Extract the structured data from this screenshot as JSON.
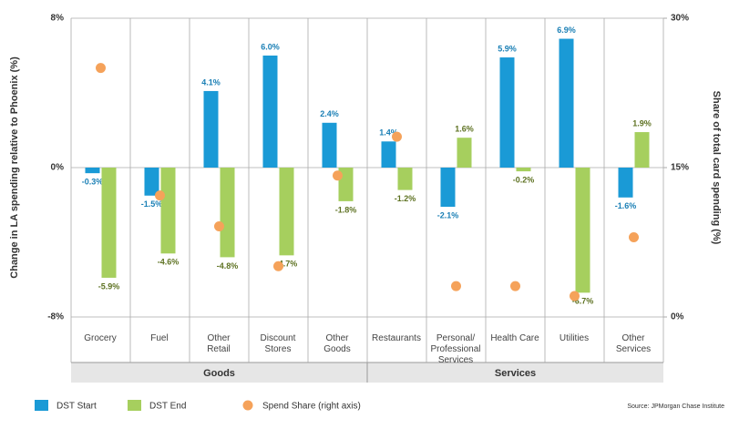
{
  "chart_data": {
    "type": "bar",
    "y_label": "Change in LA spending relative to Phoenix (%)",
    "y2_label": "Share of total card spending (%)",
    "categories": [
      "Grocery",
      "Fuel",
      "Other\nRetail",
      "Discount\nStores",
      "Other\nGoods",
      "Restaurants",
      "Personal/\nProfessional\nServices",
      "Health Care",
      "Utilities",
      "Other\nServices"
    ],
    "groups": [
      {
        "label": "Goods",
        "categories": [
          "Grocery",
          "Fuel",
          "Other\nRetail",
          "Discount\nStores",
          "Other\nGoods"
        ]
      },
      {
        "label": "Services",
        "categories": [
          "Restaurants",
          "Personal/\nProfessional\nServices",
          "Health Care",
          "Utilities",
          "Other\nServices"
        ]
      }
    ],
    "series": [
      {
        "name": "DST Start",
        "type": "bar",
        "color": "#1a9ad6",
        "label_color": "#1a7fb5",
        "values": [
          -0.3,
          -1.5,
          4.1,
          6.0,
          2.4,
          1.4,
          -2.1,
          5.9,
          6.9,
          -1.6
        ],
        "value_labels": [
          "-0.3%",
          "-1.5%",
          "4.1%",
          "6.0%",
          "2.4%",
          "1.4%",
          "-2.1%",
          "5.9%",
          "6.9%",
          "-1.6%"
        ]
      },
      {
        "name": "DST End",
        "type": "bar",
        "color": "#a6cf5e",
        "label_color": "#5e7222",
        "values": [
          -5.9,
          -4.6,
          -4.8,
          -4.7,
          -1.8,
          -1.2,
          1.6,
          -0.2,
          -6.7,
          1.9
        ],
        "value_labels": [
          "-5.9%",
          "-4.6%",
          "-4.8%",
          "-4.7%",
          "-1.8%",
          "-1.2%",
          "1.6%",
          "-0.2%",
          "-6.7%",
          "1.9%"
        ]
      },
      {
        "name": "Spend Share (right axis)",
        "type": "scatter",
        "axis": "y2",
        "color": "#f5a25a",
        "values": [
          25,
          12.2,
          9.1,
          5.1,
          14.2,
          18.1,
          3.1,
          3.1,
          2.1,
          8.0
        ]
      }
    ],
    "ylim": [
      -8,
      8
    ],
    "yticks": [
      {
        "value": -8,
        "label": "-8%"
      },
      {
        "value": 0,
        "label": "0%"
      },
      {
        "value": 8,
        "label": "8%"
      }
    ],
    "y2lim": [
      0,
      30
    ],
    "y2ticks": [
      {
        "value": 0,
        "label": "0%"
      },
      {
        "value": 15,
        "label": "15%"
      },
      {
        "value": 30,
        "label": "30%"
      }
    ],
    "source": "Source:  JPMorgan Chase Institute"
  }
}
